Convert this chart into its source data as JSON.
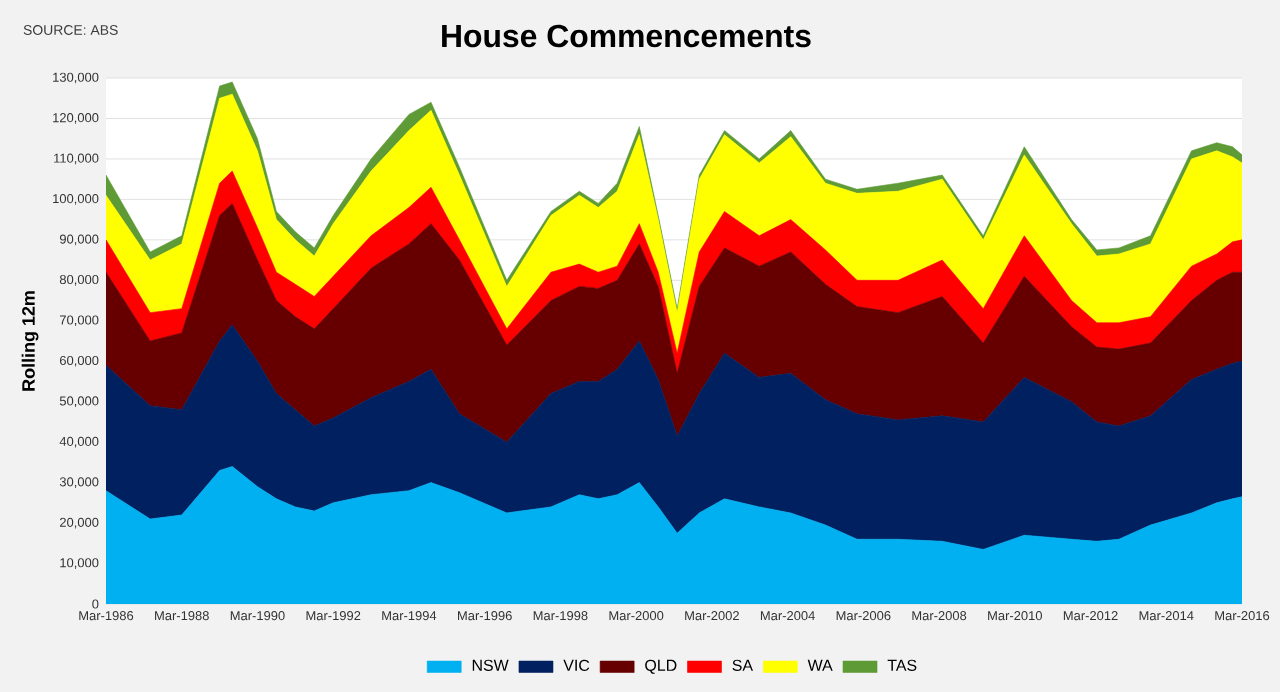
{
  "chart_data": {
    "type": "area",
    "stacked": true,
    "title": "House Commencements",
    "ylabel": "Rolling 12m",
    "annotations": [
      "SOURCE: ABS"
    ],
    "x": [
      "1986-03",
      "1987-05",
      "1988-03",
      "1989-03",
      "1989-07",
      "1990-03",
      "1990-09",
      "1991-03",
      "1991-09",
      "1992-03",
      "1993-03",
      "1994-03",
      "1994-10",
      "1995-07",
      "1996-10",
      "1997-12",
      "1998-09",
      "1999-03",
      "1999-09",
      "2000-04",
      "2000-10",
      "2001-04",
      "2001-11",
      "2002-07",
      "2003-06",
      "2004-04",
      "2005-03",
      "2006-01",
      "2007-02",
      "2008-04",
      "2009-05",
      "2010-06",
      "2011-09",
      "2012-05",
      "2012-12",
      "2013-10",
      "2014-11",
      "2015-07",
      "2015-12",
      "2016-03"
    ],
    "series": [
      {
        "name": "NSW",
        "color": "#00b0f0",
        "values": [
          28000,
          21000,
          22000,
          33000,
          34000,
          29000,
          26000,
          24000,
          23000,
          25000,
          27000,
          28000,
          30000,
          27500,
          22500,
          24000,
          27000,
          26000,
          27000,
          30000,
          24000,
          17500,
          22500,
          26000,
          24000,
          22500,
          19500,
          16000,
          16000,
          15500,
          13500,
          17000,
          16000,
          15500,
          16000,
          19500,
          22500,
          25000,
          26000,
          26500
        ]
      },
      {
        "name": "VIC",
        "color": "#002060",
        "values": [
          31000,
          28000,
          26000,
          32000,
          35000,
          31000,
          26000,
          24000,
          21000,
          21000,
          24000,
          27000,
          28000,
          19500,
          17500,
          28000,
          28000,
          29000,
          31000,
          35000,
          31500,
          24000,
          29500,
          36000,
          32000,
          34500,
          31000,
          31000,
          29500,
          31000,
          31500,
          39000,
          34000,
          29500,
          28000,
          27000,
          33000,
          33000,
          33500,
          33500
        ]
      },
      {
        "name": "QLD",
        "color": "#660000",
        "values": [
          23000,
          16000,
          19000,
          31000,
          30000,
          25000,
          23000,
          23000,
          24000,
          27000,
          32000,
          34000,
          36000,
          38000,
          24000,
          23000,
          23500,
          23000,
          22000,
          24000,
          23000,
          15500,
          26500,
          26000,
          27500,
          30000,
          28500,
          26500,
          26500,
          29500,
          19500,
          25000,
          18500,
          18500,
          19000,
          18000,
          19500,
          22000,
          22500,
          22000
        ]
      },
      {
        "name": "SA",
        "color": "#ff0000",
        "values": [
          8000,
          7000,
          6000,
          8000,
          8000,
          8000,
          7000,
          8000,
          8000,
          8000,
          8000,
          9000,
          9000,
          5000,
          4000,
          7000,
          5500,
          4000,
          3500,
          5000,
          3500,
          5000,
          8500,
          9000,
          7500,
          8000,
          8500,
          6500,
          8000,
          9000,
          8500,
          10000,
          6500,
          6000,
          6500,
          6500,
          8500,
          6500,
          7500,
          8000
        ]
      },
      {
        "name": "WA",
        "color": "#ffff00",
        "values": [
          11000,
          13000,
          16000,
          21000,
          19000,
          19000,
          13000,
          11000,
          10000,
          13000,
          16000,
          19000,
          19000,
          16000,
          10500,
          14000,
          17000,
          16000,
          18500,
          22000,
          13000,
          10000,
          18000,
          19000,
          18000,
          20500,
          16500,
          21500,
          22000,
          20000,
          17000,
          20000,
          19000,
          16500,
          17000,
          18000,
          26500,
          25500,
          21000,
          19000
        ]
      },
      {
        "name": "TAS",
        "color": "#5e9a35",
        "values": [
          5000,
          2000,
          2000,
          3000,
          3000,
          3000,
          2000,
          2000,
          2000,
          2000,
          3000,
          4000,
          2000,
          2000,
          1500,
          1000,
          1000,
          1000,
          2000,
          2000,
          1000,
          1000,
          1000,
          1000,
          1000,
          1500,
          1000,
          1000,
          2000,
          1000,
          1000,
          2000,
          1000,
          1500,
          1500,
          2000,
          2000,
          2000,
          2500,
          2000
        ]
      }
    ],
    "xlim": [
      "1986-03",
      "2016-03"
    ],
    "xticks": [
      {
        "value": "1986-03",
        "label": "Mar-1986"
      },
      {
        "value": "1988-03",
        "label": "Mar-1988"
      },
      {
        "value": "1990-03",
        "label": "Mar-1990"
      },
      {
        "value": "1992-03",
        "label": "Mar-1992"
      },
      {
        "value": "1994-03",
        "label": "Mar-1994"
      },
      {
        "value": "1996-03",
        "label": "Mar-1996"
      },
      {
        "value": "1998-03",
        "label": "Mar-1998"
      },
      {
        "value": "2000-03",
        "label": "Mar-2000"
      },
      {
        "value": "2002-03",
        "label": "Mar-2002"
      },
      {
        "value": "2004-03",
        "label": "Mar-2004"
      },
      {
        "value": "2006-03",
        "label": "Mar-2006"
      },
      {
        "value": "2008-03",
        "label": "Mar-2008"
      },
      {
        "value": "2010-03",
        "label": "Mar-2010"
      },
      {
        "value": "2012-03",
        "label": "Mar-2012"
      },
      {
        "value": "2014-03",
        "label": "Mar-2014"
      },
      {
        "value": "2016-03",
        "label": "Mar-2016"
      }
    ],
    "ylim": [
      0,
      130000
    ],
    "yticks": [
      0,
      {
        "value": 10000,
        "label": "10,000"
      },
      {
        "value": 20000,
        "label": "20,000"
      },
      {
        "value": 30000,
        "label": "30,000"
      },
      {
        "value": 40000,
        "label": "40,000"
      },
      {
        "value": 50000,
        "label": "50,000"
      },
      {
        "value": 60000,
        "label": "60,000"
      },
      {
        "value": 70000,
        "label": "70,000"
      },
      {
        "value": 80000,
        "label": "80,000"
      },
      {
        "value": 90000,
        "label": "90,000"
      },
      {
        "value": 100000,
        "label": "100,000"
      },
      {
        "value": 110000,
        "label": "110,000"
      },
      {
        "value": 120000,
        "label": "120,000"
      },
      {
        "value": 130000,
        "label": "130,000"
      }
    ],
    "grid": "y",
    "legend": "bottom"
  }
}
